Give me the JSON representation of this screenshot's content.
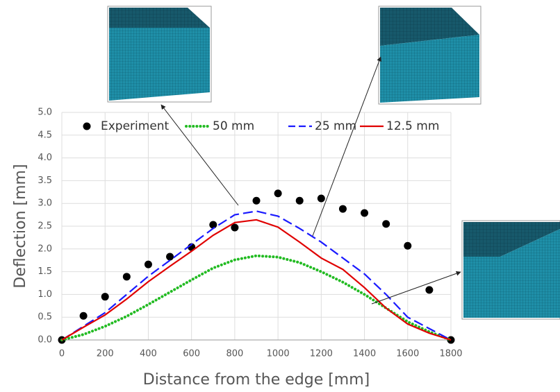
{
  "chart_data": {
    "type": "line",
    "x_label": "Distance from the edge [mm]",
    "y_label": "Deflection [mm]",
    "x": [
      0,
      100,
      200,
      300,
      400,
      500,
      600,
      700,
      800,
      900,
      1000,
      1100,
      1200,
      1300,
      1400,
      1500,
      1600,
      1700,
      1800
    ],
    "series": [
      {
        "name": "Experiment",
        "color": "#000000",
        "style": "markers",
        "values": [
          0,
          0.53,
          0.95,
          1.39,
          1.66,
          1.83,
          2.04,
          2.53,
          2.47,
          3.06,
          3.22,
          3.06,
          3.11,
          2.88,
          2.79,
          2.55,
          2.07,
          1.1,
          0
        ]
      },
      {
        "name": "50 mm",
        "color": "#22bb22",
        "style": "dotted",
        "values": [
          0,
          0.12,
          0.3,
          0.52,
          0.78,
          1.05,
          1.32,
          1.58,
          1.76,
          1.85,
          1.82,
          1.7,
          1.5,
          1.27,
          1.0,
          0.7,
          0.4,
          0.18,
          0
        ]
      },
      {
        "name": "25 mm",
        "color": "#1a1aff",
        "style": "dashed",
        "values": [
          0,
          0.3,
          0.6,
          1.0,
          1.4,
          1.75,
          2.1,
          2.45,
          2.75,
          2.83,
          2.72,
          2.45,
          2.15,
          1.8,
          1.45,
          1.0,
          0.5,
          0.25,
          0
        ]
      },
      {
        "name": "12.5 mm",
        "color": "#e00000",
        "style": "solid",
        "values": [
          0,
          0.28,
          0.55,
          0.9,
          1.28,
          1.62,
          1.95,
          2.3,
          2.58,
          2.64,
          2.48,
          2.15,
          1.8,
          1.55,
          1.15,
          0.7,
          0.35,
          0.15,
          0
        ]
      }
    ],
    "xlim": [
      0,
      1800
    ],
    "xticks": [
      0,
      200,
      400,
      600,
      800,
      1000,
      1200,
      1400,
      1600,
      1800
    ],
    "ylim": [
      0,
      5
    ],
    "yticks": [
      {
        "value": 0,
        "label": "0.0"
      },
      {
        "value": 0.5,
        "label": "0.5"
      },
      {
        "value": 1,
        "label": "1.0"
      },
      {
        "value": 1.5,
        "label": "1.5"
      },
      {
        "value": 2,
        "label": "2.0"
      },
      {
        "value": 2.5,
        "label": "2.5"
      },
      {
        "value": 3,
        "label": "3.0"
      },
      {
        "value": 3.5,
        "label": "3.5"
      },
      {
        "value": 4,
        "label": "4.0"
      },
      {
        "value": 4.5,
        "label": "4.5"
      },
      {
        "value": 5,
        "label": "5.0"
      }
    ],
    "grid": true
  }
}
